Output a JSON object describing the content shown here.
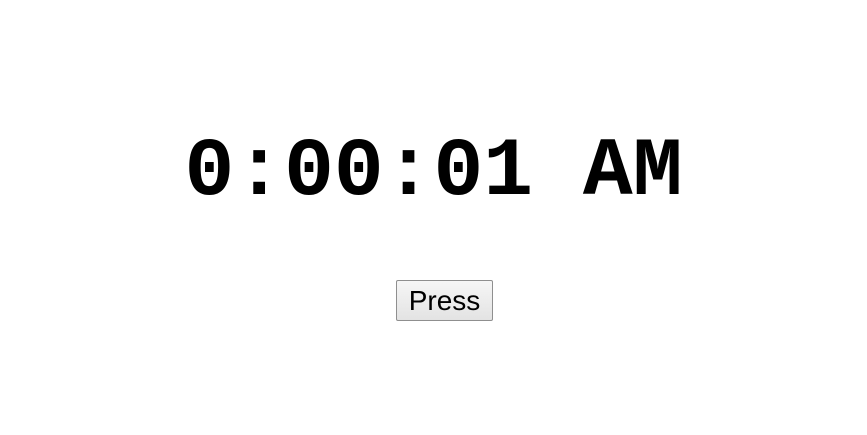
{
  "clock": {
    "time": "0:00:01 AM"
  },
  "controls": {
    "press_label": "Press"
  }
}
